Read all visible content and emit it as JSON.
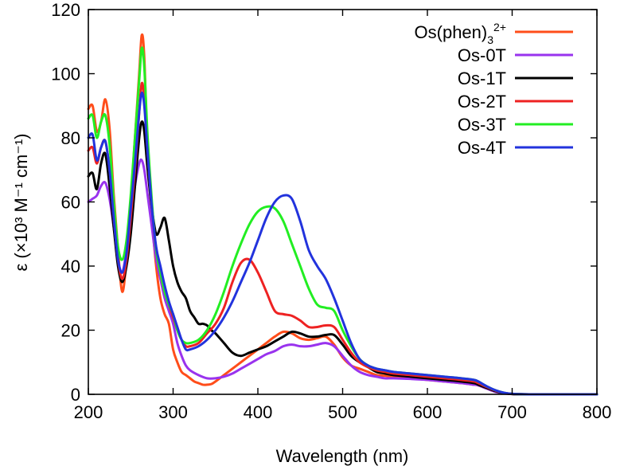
{
  "chart_data": {
    "type": "line",
    "title": "",
    "xlabel": "Wavelength (nm)",
    "ylabel": "ε (×10³ M⁻¹ cm⁻¹)",
    "xlim": [
      200,
      800
    ],
    "ylim": [
      0,
      120
    ],
    "xticks": [
      200,
      300,
      400,
      500,
      600,
      700,
      800
    ],
    "yticks": [
      0,
      20,
      40,
      60,
      80,
      100,
      120
    ],
    "grid": false,
    "legend_position": "top-right",
    "series": [
      {
        "name": "Os(phen)3 2+",
        "label_main": "Os(phen)",
        "label_sub": "3",
        "label_sup": "2+",
        "color": "#ff4d1a",
        "x": [
          200,
          205,
          210,
          215,
          220,
          225,
          230,
          235,
          240,
          245,
          250,
          255,
          260,
          263,
          266,
          270,
          275,
          280,
          285,
          290,
          295,
          300,
          305,
          310,
          315,
          320,
          325,
          330,
          335,
          340,
          345,
          350,
          360,
          370,
          380,
          390,
          400,
          410,
          420,
          430,
          440,
          450,
          460,
          470,
          480,
          490,
          500,
          510,
          520,
          530,
          540,
          550,
          560,
          580,
          600,
          620,
          640,
          655,
          660,
          670,
          680,
          690,
          700,
          720,
          750,
          800
        ],
        "y": [
          89,
          90,
          82,
          85,
          92,
          83,
          62,
          45,
          32,
          42,
          60,
          80,
          100,
          112,
          105,
          75,
          55,
          40,
          30,
          25,
          22,
          14,
          10,
          7,
          6,
          5,
          4,
          3.5,
          3,
          3,
          3.2,
          4,
          6,
          8,
          10,
          12,
          14,
          16,
          18,
          19.5,
          19,
          17.5,
          17,
          17.5,
          18,
          15.5,
          11.5,
          9,
          8,
          7,
          6,
          5.8,
          5.5,
          5,
          4.5,
          4,
          3.5,
          3,
          2.8,
          1.8,
          0.8,
          0.3,
          0.1,
          0,
          0,
          0
        ]
      },
      {
        "name": "Os-0T",
        "label_main": "Os-0T",
        "label_sub": "",
        "label_sup": "",
        "color": "#9933ee",
        "x": [
          200,
          205,
          210,
          215,
          220,
          225,
          230,
          235,
          240,
          245,
          250,
          255,
          260,
          263,
          266,
          270,
          275,
          280,
          285,
          290,
          295,
          300,
          305,
          310,
          315,
          320,
          330,
          340,
          350,
          360,
          370,
          380,
          390,
          400,
          410,
          420,
          430,
          440,
          450,
          460,
          470,
          480,
          490,
          500,
          510,
          520,
          530,
          540,
          550,
          560,
          580,
          600,
          620,
          640,
          655,
          660,
          670,
          680,
          690,
          700,
          720,
          750,
          800
        ],
        "y": [
          60,
          61,
          62,
          65,
          66,
          61,
          52,
          42,
          38,
          45,
          55,
          65,
          72,
          73,
          70,
          62,
          52,
          42,
          36,
          30,
          26,
          22,
          16,
          12,
          9,
          7.5,
          6,
          5,
          5,
          5.5,
          6.5,
          8,
          9.5,
          11,
          12.5,
          13.5,
          15,
          15.5,
          15,
          15,
          15.5,
          16,
          15,
          12,
          9,
          7,
          6,
          5.5,
          5,
          5,
          4.8,
          4.5,
          4,
          3.5,
          3,
          2.8,
          1.8,
          0.8,
          0.3,
          0.1,
          0,
          0,
          0
        ]
      },
      {
        "name": "Os-1T",
        "label_main": "Os-1T",
        "label_sub": "",
        "label_sup": "",
        "color": "#000000",
        "x": [
          200,
          205,
          210,
          215,
          220,
          225,
          230,
          235,
          240,
          245,
          250,
          255,
          260,
          263,
          266,
          270,
          275,
          280,
          285,
          290,
          295,
          300,
          305,
          310,
          315,
          320,
          325,
          330,
          335,
          340,
          345,
          350,
          360,
          370,
          380,
          390,
          400,
          410,
          420,
          430,
          440,
          450,
          460,
          470,
          480,
          490,
          500,
          510,
          520,
          530,
          540,
          550,
          560,
          580,
          600,
          620,
          640,
          655,
          660,
          670,
          680,
          690,
          700,
          720,
          750,
          800
        ],
        "y": [
          68,
          69,
          64,
          72,
          75,
          65,
          52,
          40,
          35,
          40,
          50,
          65,
          80,
          85,
          82,
          70,
          58,
          50,
          52,
          55,
          48,
          40,
          35,
          32,
          30,
          26,
          24,
          22,
          22,
          21.5,
          20,
          19,
          16,
          13,
          12,
          13,
          14,
          15,
          16.5,
          18,
          19.5,
          19,
          18,
          18,
          18.5,
          18.5,
          15.5,
          12,
          10,
          8.5,
          7,
          6.5,
          6,
          5.5,
          5,
          4.5,
          4,
          3.5,
          3,
          2,
          1,
          0.4,
          0.1,
          0,
          0,
          0
        ]
      },
      {
        "name": "Os-2T",
        "label_main": "Os-2T",
        "label_sub": "",
        "label_sup": "",
        "color": "#ee2222",
        "x": [
          200,
          205,
          210,
          215,
          220,
          225,
          230,
          235,
          240,
          245,
          250,
          255,
          260,
          263,
          266,
          270,
          275,
          280,
          285,
          290,
          295,
          300,
          305,
          310,
          315,
          320,
          330,
          340,
          350,
          360,
          370,
          380,
          390,
          400,
          410,
          420,
          430,
          440,
          450,
          460,
          470,
          480,
          490,
          500,
          510,
          520,
          530,
          540,
          550,
          560,
          580,
          600,
          620,
          640,
          655,
          660,
          670,
          680,
          690,
          700,
          720,
          750,
          800
        ],
        "y": [
          76,
          77,
          72,
          77,
          79,
          70,
          55,
          42,
          36,
          42,
          55,
          70,
          88,
          97,
          92,
          75,
          58,
          45,
          38,
          32,
          28,
          24,
          20,
          17,
          15,
          15,
          16,
          19,
          22,
          27,
          35,
          41,
          42,
          38,
          32,
          26,
          25,
          24.5,
          23,
          21,
          21,
          21.5,
          21,
          17,
          13,
          10,
          8.5,
          7.5,
          7,
          6.5,
          6,
          5.5,
          5,
          4.5,
          4,
          3.5,
          2.3,
          1.2,
          0.5,
          0.15,
          0,
          0,
          0
        ]
      },
      {
        "name": "Os-3T",
        "label_main": "Os-3T",
        "label_sub": "",
        "label_sup": "",
        "color": "#22ee22",
        "x": [
          200,
          205,
          210,
          215,
          220,
          225,
          230,
          235,
          240,
          245,
          250,
          255,
          260,
          263,
          266,
          270,
          275,
          280,
          285,
          290,
          295,
          300,
          305,
          310,
          315,
          320,
          330,
          340,
          350,
          360,
          370,
          380,
          390,
          400,
          410,
          420,
          430,
          440,
          450,
          460,
          470,
          480,
          490,
          500,
          510,
          520,
          530,
          540,
          550,
          560,
          580,
          600,
          620,
          640,
          655,
          660,
          670,
          680,
          690,
          700,
          720,
          750,
          800
        ],
        "y": [
          86,
          87,
          80,
          85,
          87,
          78,
          60,
          46,
          42,
          48,
          62,
          80,
          98,
          108,
          102,
          80,
          60,
          45,
          38,
          32,
          28,
          25,
          20,
          17,
          16,
          16,
          17,
          20,
          25,
          32,
          40,
          47,
          53,
          57,
          58.5,
          58,
          54,
          47,
          40,
          33,
          28,
          27,
          26,
          20,
          15,
          11,
          9,
          8,
          7.5,
          7,
          6.5,
          6,
          5.5,
          5,
          4.5,
          4,
          2.5,
          1.3,
          0.5,
          0.15,
          0,
          0,
          0
        ]
      },
      {
        "name": "Os-4T",
        "label_main": "Os-4T",
        "label_sub": "",
        "label_sup": "",
        "color": "#2233dd",
        "x": [
          200,
          205,
          210,
          215,
          220,
          225,
          230,
          235,
          240,
          245,
          250,
          255,
          260,
          263,
          266,
          270,
          275,
          280,
          285,
          290,
          295,
          300,
          305,
          310,
          315,
          320,
          330,
          340,
          350,
          360,
          370,
          380,
          390,
          400,
          410,
          420,
          430,
          440,
          450,
          460,
          470,
          480,
          490,
          500,
          510,
          520,
          530,
          540,
          550,
          560,
          580,
          600,
          620,
          640,
          655,
          660,
          670,
          680,
          690,
          700,
          720,
          750,
          800
        ],
        "y": [
          80,
          81,
          73,
          77,
          79,
          70,
          55,
          42,
          38,
          44,
          58,
          72,
          88,
          94,
          90,
          75,
          58,
          46,
          40,
          34,
          29,
          25,
          21,
          17,
          14,
          14,
          15,
          17,
          20,
          24,
          29,
          35,
          41,
          48,
          55,
          60,
          62,
          61,
          54,
          45,
          40,
          36,
          30,
          23,
          16,
          11,
          9,
          8,
          7.5,
          7,
          6.5,
          6,
          5.5,
          5,
          4.5,
          4,
          2.5,
          1.3,
          0.5,
          0.15,
          0,
          0,
          0
        ]
      }
    ]
  }
}
